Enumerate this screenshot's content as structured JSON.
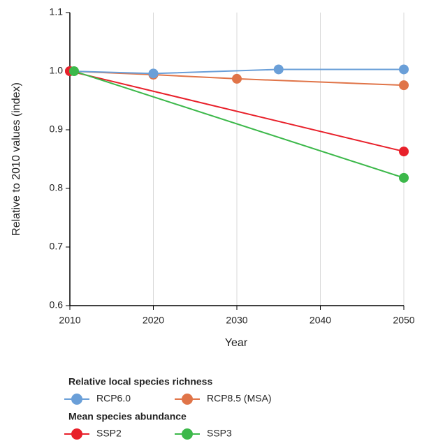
{
  "chart_data": {
    "type": "line",
    "x_label": "Year",
    "y_label": "Relative to 2010 values (index)",
    "xlim": [
      2010,
      2050
    ],
    "xticks": [
      2010,
      2020,
      2030,
      2040,
      2050
    ],
    "ylim": [
      0.6,
      1.1
    ],
    "yticks": [
      0.6,
      0.7,
      0.8,
      0.9,
      {
        "value": 1,
        "label": "1.0"
      },
      1.1
    ],
    "grid": "x",
    "legend_groups": [
      {
        "title": "Relative local species richness",
        "series": [
          {
            "name": "RCP6.0",
            "color": "#6a9fd8",
            "x": [
              2010,
              2020,
              2035,
              2050
            ],
            "values": [
              1,
              0.996,
              1.003,
              1.003
            ]
          },
          {
            "name": "RCP8.5 (MSA)",
            "color": "#e07448",
            "x": [
              2010,
              2020,
              2030,
              2050
            ],
            "values": [
              1,
              0.994,
              0.987,
              0.976
            ]
          }
        ]
      },
      {
        "title": "Mean species abundance",
        "series": [
          {
            "name": "SSP2",
            "color": "#e8202a",
            "x": [
              2010,
              2050
            ],
            "values": [
              1,
              0.863
            ]
          },
          {
            "name": "SSP3",
            "color": "#3cb84a",
            "x": [
              2010.5,
              2050
            ],
            "values": [
              1,
              0.818
            ]
          }
        ]
      }
    ]
  }
}
